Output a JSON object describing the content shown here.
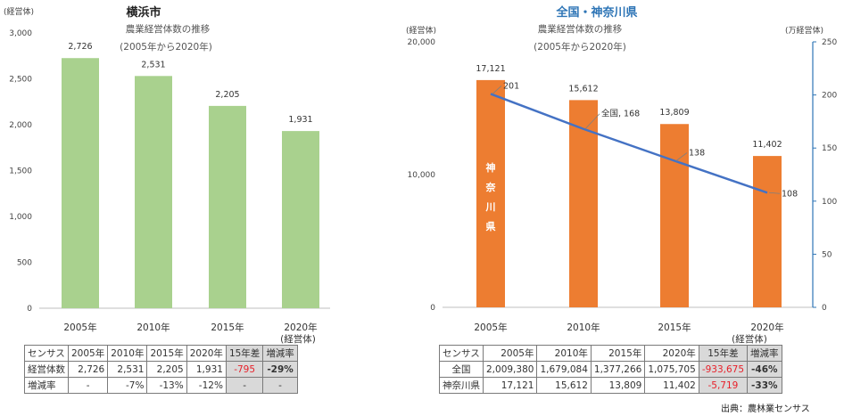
{
  "source_label": "出典：農林業センサス",
  "chart_data": [
    {
      "type": "bar",
      "title": "横浜市",
      "subtitle": "農業経営体数の推移",
      "period": "(2005年から2020年)",
      "y_unit": "(経営体)",
      "categories": [
        "2005年",
        "2010年",
        "2015年",
        "2020年"
      ],
      "category_note": "(経営体)",
      "values": [
        2726,
        2531,
        2205,
        1931
      ],
      "value_labels": [
        "2,726",
        "2,531",
        "2,205",
        "1,931"
      ],
      "ylim": [
        0,
        3000
      ],
      "yticks": [
        "0",
        "500",
        "1,000",
        "1,500",
        "2,000",
        "2,500",
        "3,000"
      ],
      "bar_color": "#a9d18e",
      "grid": false
    },
    {
      "type": "bar+line",
      "title": "全国・神奈川県",
      "subtitle": "農業経営体数の推移",
      "period": "(2005年から2020年)",
      "y_unit": "(経営体)",
      "y2_unit": "(万経営体)",
      "categories": [
        "2005年",
        "2010年",
        "2015年",
        "2020年"
      ],
      "category_note": "(経営体)",
      "bar_series_label": "神奈川県",
      "values": [
        17121,
        15612,
        13809,
        11402
      ],
      "value_labels": [
        "17,121",
        "15,612",
        "13,809",
        "11,402"
      ],
      "line_values": [
        201,
        168,
        138,
        108
      ],
      "line_labels": [
        "201",
        "全国, 168",
        "138",
        "108"
      ],
      "ylim": [
        0,
        20000
      ],
      "yticks": [
        "0",
        "10,000",
        "20,000"
      ],
      "y2lim": [
        0,
        250
      ],
      "y2ticks": [
        "0",
        "50",
        "100",
        "150",
        "200",
        "250"
      ],
      "bar_color": "#ed7d31",
      "line_color": "#4472c4",
      "grid": false
    }
  ],
  "table_left": {
    "header": [
      "センサス",
      "2005年",
      "2010年",
      "2015年",
      "2020年",
      "15年差",
      "増減率"
    ],
    "rows": [
      [
        "経営体数",
        "2,726",
        "2,531",
        "2,205",
        "1,931",
        "-795",
        "-29%"
      ],
      [
        "増減率",
        "-",
        "-7%",
        "-13%",
        "-12%",
        "-",
        "-"
      ]
    ]
  },
  "table_right": {
    "header": [
      "センサス",
      "2005年",
      "2010年",
      "2015年",
      "2020年",
      "15年差",
      "増減率"
    ],
    "rows": [
      [
        "全国",
        "2,009,380",
        "1,679,084",
        "1,377,266",
        "1,075,705",
        "-933,675",
        "-46%"
      ],
      [
        "神奈川県",
        "17,121",
        "15,612",
        "13,809",
        "11,402",
        "-5,719",
        "-33%"
      ]
    ]
  }
}
